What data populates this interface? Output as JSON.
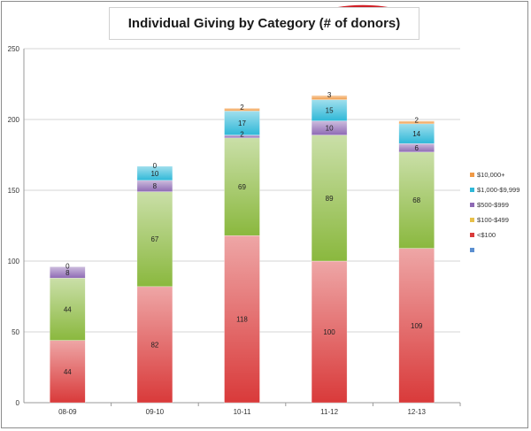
{
  "chart_data": {
    "type": "bar",
    "stacked": true,
    "title": "Individual Giving by Category (# of donors)",
    "title_highlight": "(# of donors)",
    "title_highlight_color": "#d01f26",
    "categories": [
      "08-09",
      "09-10",
      "10-11",
      "11-12",
      "12-13"
    ],
    "ylim": [
      0,
      250
    ],
    "yticks": [
      0,
      50,
      100,
      150,
      200,
      250
    ],
    "grid": true,
    "legend_position": "right",
    "series": [
      {
        "name": "<$100",
        "color": "#d93a3a",
        "values": [
          44,
          82,
          118,
          100,
          109
        ]
      },
      {
        "name": "$100-$499",
        "color": "#8ab83e",
        "values": [
          44,
          67,
          69,
          89,
          68
        ]
      },
      {
        "name": "$500-$999",
        "color": "#8e6ab4",
        "values": [
          8,
          8,
          2,
          10,
          6
        ]
      },
      {
        "name": "$1,000-$9,999",
        "color": "#2fb8d8",
        "values": [
          0,
          10,
          17,
          15,
          14
        ]
      },
      {
        "name": "$10,000+",
        "color": "#f09a46",
        "values": [
          0,
          0,
          2,
          3,
          2
        ]
      }
    ],
    "data_labels": [
      [
        "44",
        "82",
        "118",
        "100",
        "109"
      ],
      [
        "44",
        "67",
        "69",
        "89",
        "68"
      ],
      [
        "8",
        "8",
        "2",
        "10",
        "6"
      ],
      [
        "0",
        "10",
        "17",
        "15",
        "14"
      ],
      [
        "",
        "0",
        "2",
        "3",
        "2"
      ]
    ],
    "legend": [
      {
        "label": "$10,000+",
        "color": "#f09a46"
      },
      {
        "label": "$1,000-$9,999",
        "color": "#2fb8d8"
      },
      {
        "label": "$500-$999",
        "color": "#8e6ab4"
      },
      {
        "label": "$100-$499",
        "color": "#e8c04a"
      },
      {
        "label": "<$100",
        "color": "#d93a3a"
      },
      {
        "label": "",
        "color": "#5b8fd0"
      }
    ]
  }
}
